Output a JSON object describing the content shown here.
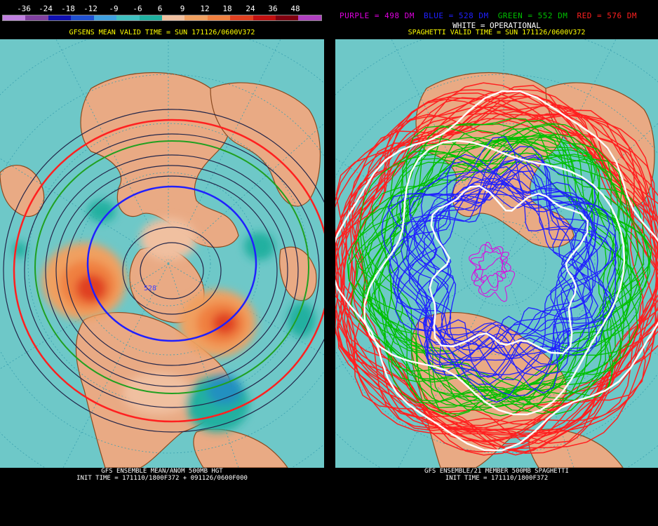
{
  "colorbar": {
    "labels": [
      "-36",
      "-24",
      "-18",
      "-12",
      "-9",
      "-6",
      "6",
      "9",
      "12",
      "18",
      "24",
      "36",
      "48"
    ],
    "colors": [
      "#c080e0",
      "#8040a0",
      "#1010b0",
      "#2050d0",
      "#40a0e0",
      "#40c0c0",
      "#20b0a0",
      "#f0c0a0",
      "#f0a060",
      "#f08040",
      "#e04020",
      "#c01010",
      "#800010",
      "#b040c0"
    ]
  },
  "legend": {
    "purple": {
      "text": "PURPLE = 498 DM",
      "color": "#e000e0"
    },
    "blue": {
      "text": "BLUE = 528 DM",
      "color": "#2020ff"
    },
    "green": {
      "text": "GREEN = 552 DM",
      "color": "#00c000"
    },
    "red": {
      "text": "RED = 576 DM",
      "color": "#ff2020"
    }
  },
  "left_panel": {
    "title": "GFSENS MEAN VALID TIME = SUN 171126/0600V372",
    "contour_label": "528",
    "footer_line1": "GFS ENSEMBLE MEAN/ANOM 500MB HGT",
    "footer_line2": "INIT TIME = 171110/1800F372 + 091126/0600F000"
  },
  "right_panel": {
    "operational": "WHITE = OPERATIONAL",
    "title": "SPAGHETTI VALID TIME = SUN 171126/0600V372",
    "footer_line1": "GFS ENSEMBLE/21 MEMBER 500MB SPAGHETTI",
    "footer_line2": "INIT TIME = 171110/1800F372"
  }
}
